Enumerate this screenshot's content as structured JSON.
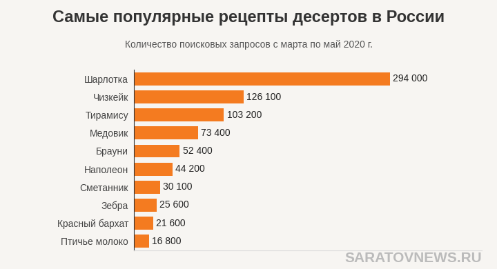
{
  "chart_data": {
    "type": "bar",
    "orientation": "horizontal",
    "title": "Самые популярные рецепты десертов в России",
    "subtitle": "Количество поисковых запросов с марта по май 2020 г.",
    "annotations": [
      "SARATOVNEWS.RU"
    ],
    "categories": [
      "Шарлотка",
      "Чизкейк",
      "Тирамису",
      "Медовик",
      "Брауни",
      "Наполеон",
      "Сметанник",
      "Зебра",
      "Красный бархат",
      "Птичье молоко"
    ],
    "values": [
      294000,
      126100,
      103200,
      73400,
      52400,
      44200,
      30100,
      25600,
      21600,
      16800
    ],
    "value_labels": [
      "294 000",
      "126 100",
      "103 200",
      "73 400",
      "52 400",
      "44 200",
      "30 100",
      "25 600",
      "21 600",
      "16 800"
    ],
    "data_labels": true,
    "color": "#f47b20",
    "xlim": [
      0,
      400000
    ],
    "xticks": [],
    "tick_labels": "y",
    "grid": false
  }
}
